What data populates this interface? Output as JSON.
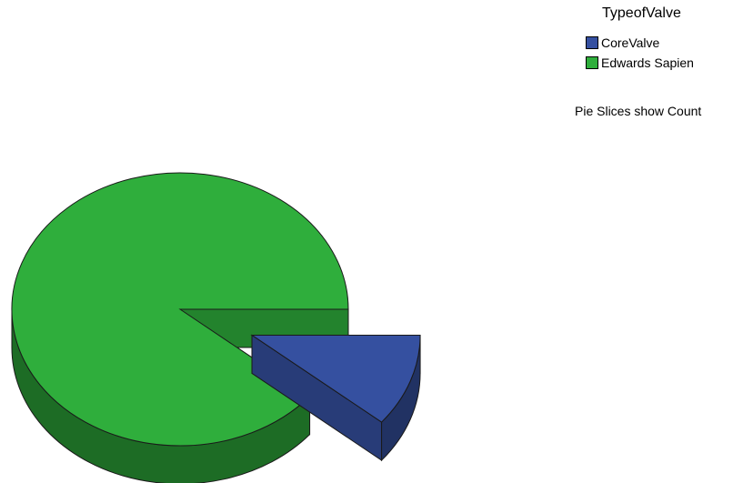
{
  "chart_data": {
    "type": "pie",
    "legend_title": "TypeofValve",
    "legend_position": "top-right",
    "note": "Pie Slices show Count",
    "slices": [
      {
        "name": "CoreValve",
        "value": 11,
        "color": "#3550a0",
        "exploded": true
      },
      {
        "name": "Edwards Sapien",
        "value": 89,
        "color": "#2fae3c",
        "exploded": false
      }
    ]
  }
}
